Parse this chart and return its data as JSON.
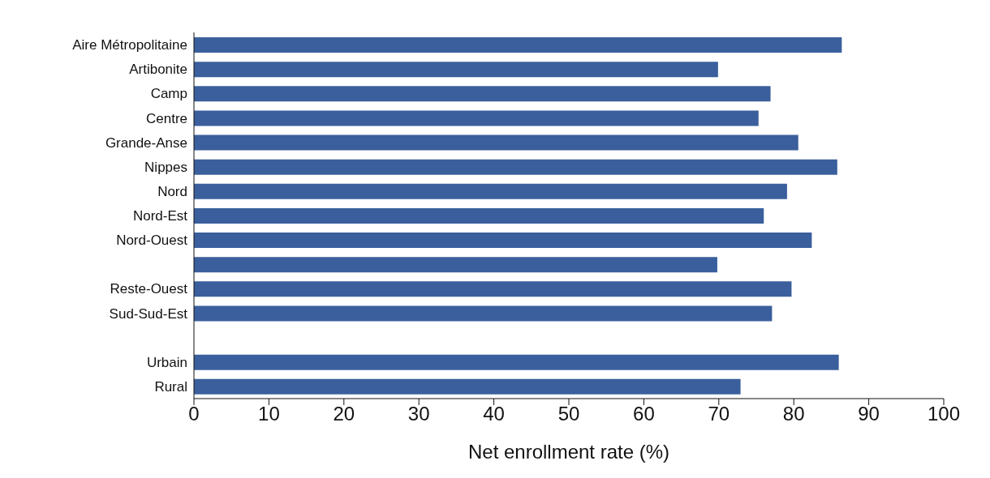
{
  "chart_data": {
    "type": "bar",
    "orientation": "horizontal",
    "xlabel": "Net enrollment rate (%)",
    "categories": [
      "Aire Métropolitaine",
      "Artibonite",
      "Camp",
      "Centre",
      "Grande-Anse",
      "Nippes",
      "Nord",
      "Nord-Est",
      "Nord-Ouest",
      null,
      "Reste-Ouest",
      "Sud-Sud-Est",
      null,
      "Urbain",
      "Rural"
    ],
    "values": [
      86.4,
      69.9,
      76.9,
      75.3,
      80.6,
      85.8,
      79.1,
      76.0,
      82.4,
      69.8,
      79.7,
      77.1,
      null,
      86.0,
      72.9
    ],
    "color": "#3a5f9c",
    "xlim": [
      0,
      100
    ],
    "xticks": [
      0,
      10,
      20,
      30,
      40,
      50,
      60,
      70,
      80,
      90,
      100
    ],
    "grid": false,
    "legend": false
  }
}
